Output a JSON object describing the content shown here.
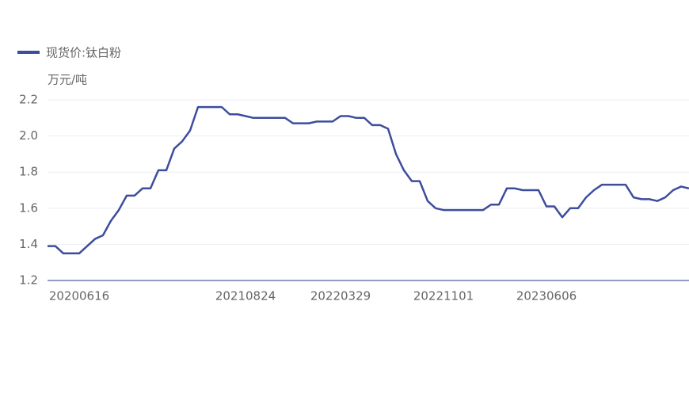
{
  "chart_data": {
    "type": "line",
    "legend_label": "现货价:钛白粉",
    "y_axis_label": "万元/吨",
    "categories": [
      null,
      null,
      null,
      null,
      "20200616",
      null,
      null,
      null,
      null,
      null,
      null,
      null,
      null,
      null,
      null,
      null,
      null,
      null,
      null,
      null,
      null,
      null,
      null,
      null,
      null,
      "20210824",
      null,
      null,
      null,
      null,
      null,
      null,
      null,
      null,
      null,
      null,
      null,
      "20220329",
      null,
      null,
      null,
      null,
      null,
      null,
      null,
      null,
      null,
      null,
      null,
      null,
      "20221101",
      null,
      null,
      null,
      null,
      null,
      null,
      null,
      null,
      null,
      null,
      null,
      null,
      "20230606",
      null,
      null,
      null,
      null,
      null,
      null,
      null,
      null,
      null,
      null,
      null,
      null,
      null,
      null,
      null,
      null,
      null,
      null
    ],
    "series": [
      {
        "name": "现货价:钛白粉",
        "color": "#3d4d9c",
        "values": [
          1.39,
          1.39,
          1.35,
          1.35,
          1.35,
          1.39,
          1.43,
          1.45,
          1.53,
          1.59,
          1.67,
          1.67,
          1.71,
          1.71,
          1.81,
          1.81,
          1.93,
          1.97,
          2.03,
          2.16,
          2.16,
          2.16,
          2.16,
          2.12,
          2.12,
          2.11,
          2.1,
          2.1,
          2.1,
          2.1,
          2.1,
          2.07,
          2.07,
          2.07,
          2.08,
          2.08,
          2.08,
          2.11,
          2.11,
          2.1,
          2.1,
          2.06,
          2.06,
          2.04,
          1.9,
          1.81,
          1.75,
          1.75,
          1.64,
          1.6,
          1.59,
          1.59,
          1.59,
          1.59,
          1.59,
          1.59,
          1.62,
          1.62,
          1.71,
          1.71,
          1.7,
          1.7,
          1.7,
          1.61,
          1.61,
          1.55,
          1.6,
          1.6,
          1.66,
          1.7,
          1.73,
          1.73,
          1.73,
          1.73,
          1.66,
          1.65,
          1.65,
          1.64,
          1.66,
          1.7,
          1.72,
          1.71
        ]
      }
    ],
    "ylim": [
      1.2,
      2.2
    ],
    "yticks": [
      1.2,
      1.4,
      1.6,
      1.8,
      {
        "value": 2,
        "label": "2.0"
      },
      2.2
    ],
    "grid": true
  }
}
